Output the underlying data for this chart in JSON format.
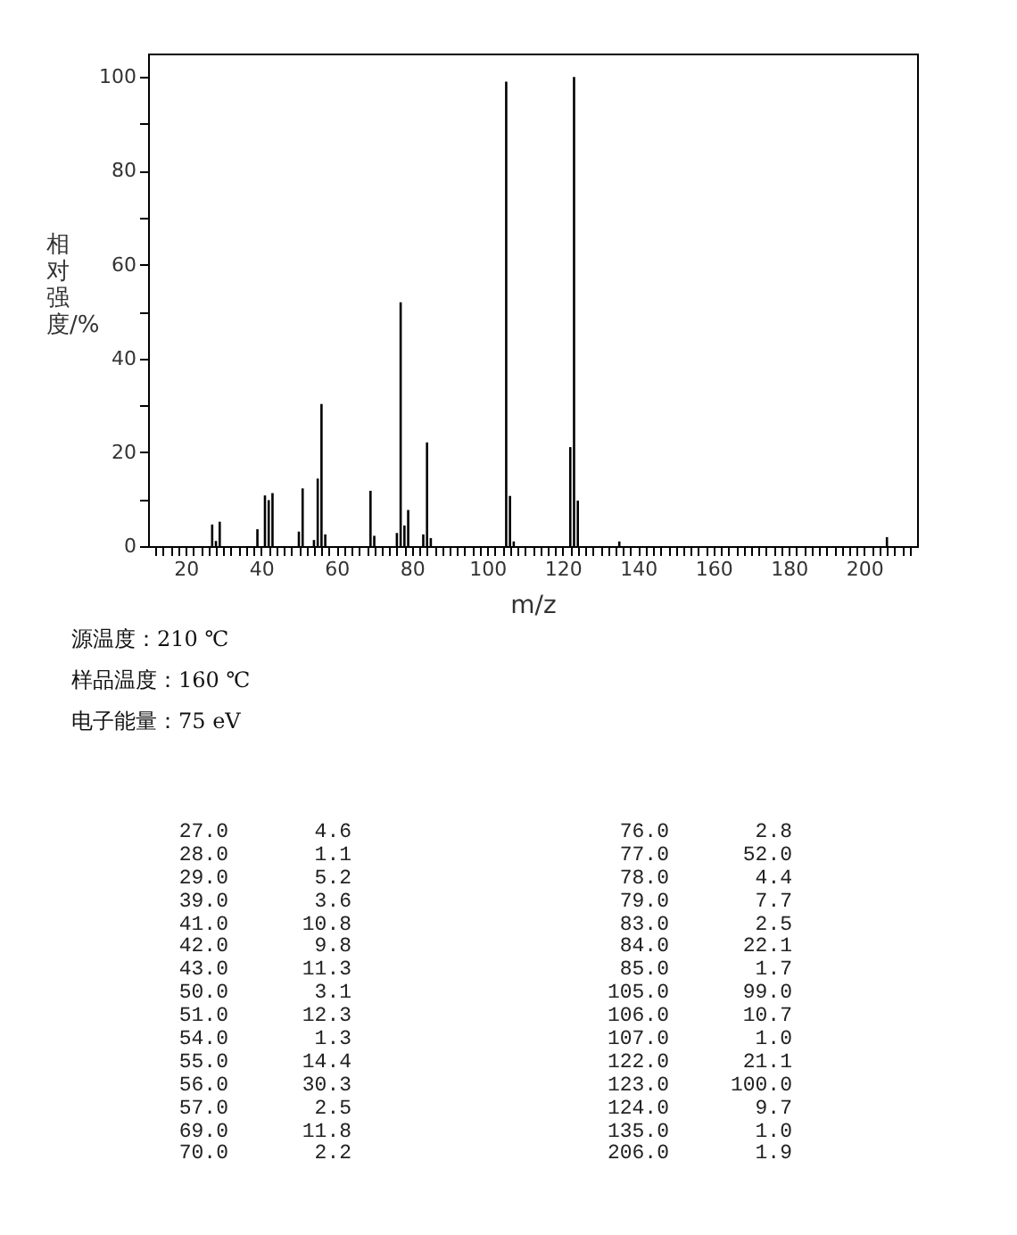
{
  "chart_data": {
    "type": "bar",
    "xlabel": "m/z",
    "ylabel": "相对强度/%",
    "color": "#000000",
    "grid": false,
    "x": [
      27,
      28,
      29,
      39,
      41,
      42,
      43,
      50,
      51,
      54,
      55,
      56,
      57,
      69,
      70,
      76,
      77,
      78,
      79,
      83,
      84,
      85,
      105,
      106,
      107,
      122,
      123,
      124,
      135,
      206
    ],
    "values": [
      4.6,
      1.1,
      5.2,
      3.6,
      10.8,
      9.8,
      11.3,
      3.1,
      12.3,
      1.3,
      14.4,
      30.3,
      2.5,
      11.8,
      2.2,
      2.8,
      52.0,
      4.4,
      7.7,
      2.5,
      22.1,
      1.7,
      99.0,
      10.7,
      1.0,
      21.1,
      100.0,
      9.7,
      1.0,
      1.9
    ],
    "xlim": [
      10,
      214
    ],
    "xticks": [
      {
        "value": 12,
        "label": null
      },
      {
        "value": 14,
        "label": null
      },
      {
        "value": 16,
        "label": null
      },
      {
        "value": 18,
        "label": null
      },
      20,
      {
        "value": 22,
        "label": null
      },
      {
        "value": 24,
        "label": null
      },
      {
        "value": 26,
        "label": null
      },
      {
        "value": 28,
        "label": null
      },
      {
        "value": 30,
        "label": null
      },
      {
        "value": 32,
        "label": null
      },
      {
        "value": 34,
        "label": null
      },
      {
        "value": 36,
        "label": null
      },
      {
        "value": 38,
        "label": null
      },
      40,
      {
        "value": 42,
        "label": null
      },
      {
        "value": 44,
        "label": null
      },
      {
        "value": 46,
        "label": null
      },
      {
        "value": 48,
        "label": null
      },
      {
        "value": 50,
        "label": null
      },
      {
        "value": 52,
        "label": null
      },
      {
        "value": 54,
        "label": null
      },
      {
        "value": 56,
        "label": null
      },
      {
        "value": 58,
        "label": null
      },
      60,
      {
        "value": 62,
        "label": null
      },
      {
        "value": 64,
        "label": null
      },
      {
        "value": 66,
        "label": null
      },
      {
        "value": 68,
        "label": null
      },
      {
        "value": 70,
        "label": null
      },
      {
        "value": 72,
        "label": null
      },
      {
        "value": 74,
        "label": null
      },
      {
        "value": 76,
        "label": null
      },
      {
        "value": 78,
        "label": null
      },
      80,
      {
        "value": 82,
        "label": null
      },
      {
        "value": 84,
        "label": null
      },
      {
        "value": 86,
        "label": null
      },
      {
        "value": 88,
        "label": null
      },
      {
        "value": 90,
        "label": null
      },
      {
        "value": 92,
        "label": null
      },
      {
        "value": 94,
        "label": null
      },
      {
        "value": 96,
        "label": null
      },
      {
        "value": 98,
        "label": null
      },
      100,
      {
        "value": 102,
        "label": null
      },
      {
        "value": 104,
        "label": null
      },
      {
        "value": 106,
        "label": null
      },
      {
        "value": 108,
        "label": null
      },
      {
        "value": 110,
        "label": null
      },
      {
        "value": 112,
        "label": null
      },
      {
        "value": 114,
        "label": null
      },
      {
        "value": 116,
        "label": null
      },
      {
        "value": 118,
        "label": null
      },
      120,
      {
        "value": 122,
        "label": null
      },
      {
        "value": 124,
        "label": null
      },
      {
        "value": 126,
        "label": null
      },
      {
        "value": 128,
        "label": null
      },
      {
        "value": 130,
        "label": null
      },
      {
        "value": 132,
        "label": null
      },
      {
        "value": 134,
        "label": null
      },
      {
        "value": 136,
        "label": null
      },
      {
        "value": 138,
        "label": null
      },
      140,
      {
        "value": 142,
        "label": null
      },
      {
        "value": 144,
        "label": null
      },
      {
        "value": 146,
        "label": null
      },
      {
        "value": 148,
        "label": null
      },
      {
        "value": 150,
        "label": null
      },
      {
        "value": 152,
        "label": null
      },
      {
        "value": 154,
        "label": null
      },
      {
        "value": 156,
        "label": null
      },
      {
        "value": 158,
        "label": null
      },
      160,
      {
        "value": 162,
        "label": null
      },
      {
        "value": 164,
        "label": null
      },
      {
        "value": 166,
        "label": null
      },
      {
        "value": 168,
        "label": null
      },
      {
        "value": 170,
        "label": null
      },
      {
        "value": 172,
        "label": null
      },
      {
        "value": 174,
        "label": null
      },
      {
        "value": 176,
        "label": null
      },
      {
        "value": 178,
        "label": null
      },
      180,
      {
        "value": 182,
        "label": null
      },
      {
        "value": 184,
        "label": null
      },
      {
        "value": 186,
        "label": null
      },
      {
        "value": 188,
        "label": null
      },
      {
        "value": 190,
        "label": null
      },
      {
        "value": 192,
        "label": null
      },
      {
        "value": 194,
        "label": null
      },
      {
        "value": 196,
        "label": null
      },
      {
        "value": 198,
        "label": null
      },
      200,
      {
        "value": 202,
        "label": null
      },
      {
        "value": 204,
        "label": null
      },
      {
        "value": 206,
        "label": null
      },
      {
        "value": 208,
        "label": null
      },
      {
        "value": 210,
        "label": null
      },
      {
        "value": 212,
        "label": null
      }
    ],
    "ylim": [
      0,
      105
    ],
    "yticks": [
      0,
      {
        "value": 10,
        "label": null
      },
      20,
      {
        "value": 30,
        "label": null
      },
      40,
      {
        "value": 50,
        "label": null
      },
      60,
      {
        "value": 70,
        "label": null
      },
      80,
      {
        "value": 90,
        "label": null
      },
      100
    ],
    "annotations": [
      "源温度：210 ℃",
      "样品温度：160 ℃",
      "电子能量：75 eV",
      "27.0       4.6",
      "28.0       1.1",
      "29.0       5.2",
      "39.0       3.6",
      "41.0      10.8",
      "42.0       9.8",
      "43.0      11.3",
      "50.0       3.1",
      "51.0      12.3",
      "54.0       1.3",
      "55.0      14.4",
      "56.0      30.3",
      "57.0       2.5",
      "69.0      11.8",
      "70.0       2.2",
      "76.0       2.8",
      "77.0      52.0",
      "78.0       4.4",
      "79.0       7.7",
      "83.0       2.5",
      "84.0      22.1",
      "85.0       1.7",
      "105.0      99.0",
      "106.0      10.7",
      "107.0       1.0",
      "122.0      21.1",
      "123.0     100.0",
      "124.0       9.7",
      "135.0       1.0",
      "206.0       1.9"
    ]
  }
}
